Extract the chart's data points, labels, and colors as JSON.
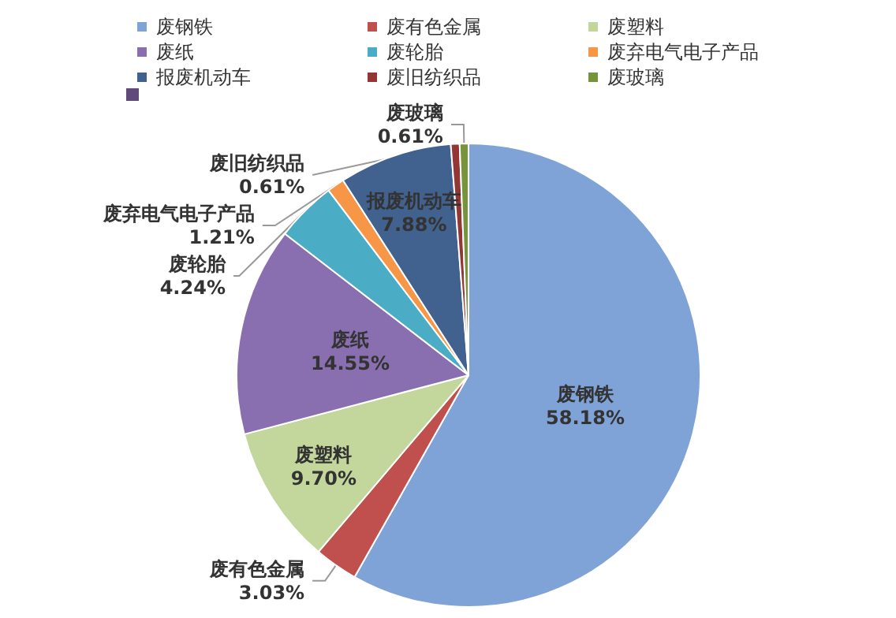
{
  "chart_data": {
    "type": "pie",
    "categories": [
      "废钢铁",
      "废有色金属",
      "废塑料",
      "废纸",
      "废轮胎",
      "废弃电气电子产品",
      "报废机动车",
      "废旧纺织品",
      "废玻璃",
      null
    ],
    "values": [
      58.18,
      3.03,
      9.7,
      14.55,
      4.24,
      1.21,
      7.88,
      0.61,
      0.61,
      0
    ],
    "value_labels": [
      "58.18%",
      "3.03%",
      "9.70%",
      "14.55%",
      "4.24%",
      "1.21%",
      "7.88%",
      "0.61%",
      "0.61%",
      null
    ],
    "colors": [
      "#7fa3d6",
      "#c0504d",
      "#c3d69b",
      "#8a6fb0",
      "#4bacc6",
      "#f79646",
      "#41628f",
      "#943634",
      "#77933c",
      "#604a7b"
    ],
    "legend": "top left"
  }
}
